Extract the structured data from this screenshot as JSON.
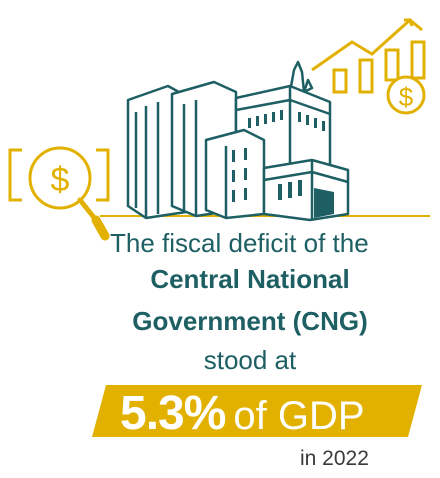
{
  "headline": {
    "line1": "The fiscal deficit of the",
    "line2": "Central National",
    "line3": "Government (CNG)",
    "line4": "stood at"
  },
  "banner": {
    "value": "5.3%",
    "suffix": "of GDP"
  },
  "year_label": "in 2022",
  "icons": [
    "government-building-icon",
    "magnifier-dollar-icon",
    "rising-chart-dollar-icon"
  ],
  "colors": {
    "teal": "#1e5f63",
    "gold": "#e2b100",
    "text_gray": "#3a3a3a"
  }
}
